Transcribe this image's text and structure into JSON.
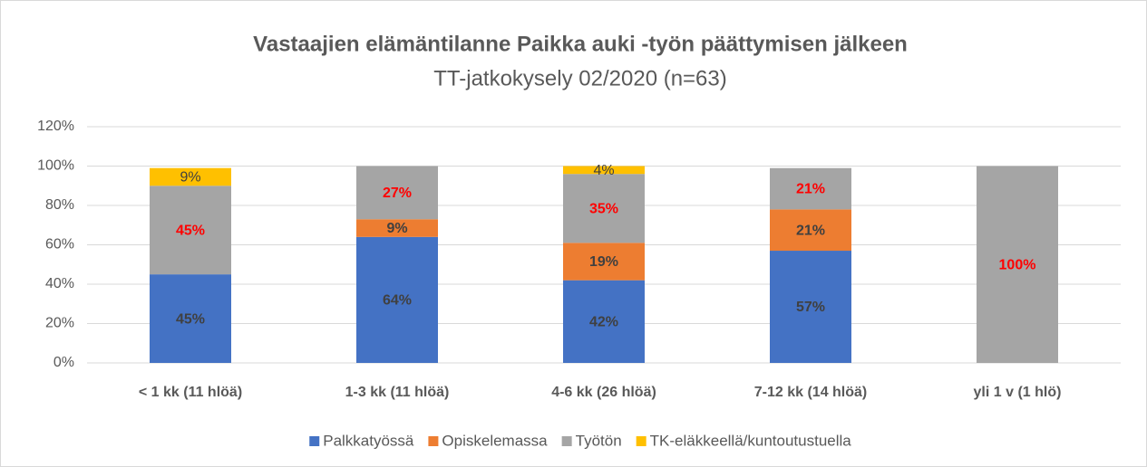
{
  "chart_data": {
    "type": "stacked_bar",
    "title": "Vastaajien elämäntilanne Paikka auki -työn päättymisen jälkeen",
    "subtitle": "TT-jatkokysely 02/2020 (n=63)",
    "categories": [
      "< 1 kk (11 hlöä)",
      "1-3 kk (11 hlöä)",
      "4-6 kk (26 hlöä)",
      "7-12 kk (14 hlöä)",
      "yli 1 v (1 hlö)"
    ],
    "series": [
      {
        "name": "Palkkatyössä",
        "color": "#4472c4",
        "label_color": "#404040",
        "label_weight": "bold",
        "values": [
          45,
          64,
          42,
          57,
          null
        ],
        "value_labels": [
          "45%",
          "64%",
          "42%",
          "57%",
          null
        ]
      },
      {
        "name": "Opiskelemassa",
        "color": "#ed7d31",
        "label_color": "#404040",
        "label_weight": "bold",
        "values": [
          null,
          9,
          19,
          21,
          null
        ],
        "value_labels": [
          null,
          "9%",
          "19%",
          "21%",
          null
        ]
      },
      {
        "name": "Työtön",
        "color": "#a5a5a5",
        "label_color": "#ff0000",
        "label_weight": "bold",
        "values": [
          45,
          27,
          35,
          21,
          100
        ],
        "value_labels": [
          "45%",
          "27%",
          "35%",
          "21%",
          "100%"
        ]
      },
      {
        "name": "TK-eläkkeellä/kuntoutustuella",
        "color": "#ffc000",
        "label_color": "#404040",
        "label_weight": "normal",
        "values": [
          9,
          null,
          4,
          null,
          null
        ],
        "value_labels": [
          "9%",
          null,
          "4%",
          null,
          null
        ]
      }
    ],
    "ylim": [
      0,
      120
    ],
    "yticks": [
      {
        "value": 0,
        "label": "0%"
      },
      {
        "value": 20,
        "label": "20%"
      },
      {
        "value": 40,
        "label": "40%"
      },
      {
        "value": 60,
        "label": "60%"
      },
      {
        "value": 80,
        "label": "80%"
      },
      {
        "value": 100,
        "label": "100%"
      },
      {
        "value": 120,
        "label": "120%"
      }
    ],
    "grid": true,
    "legend": "bottom"
  }
}
